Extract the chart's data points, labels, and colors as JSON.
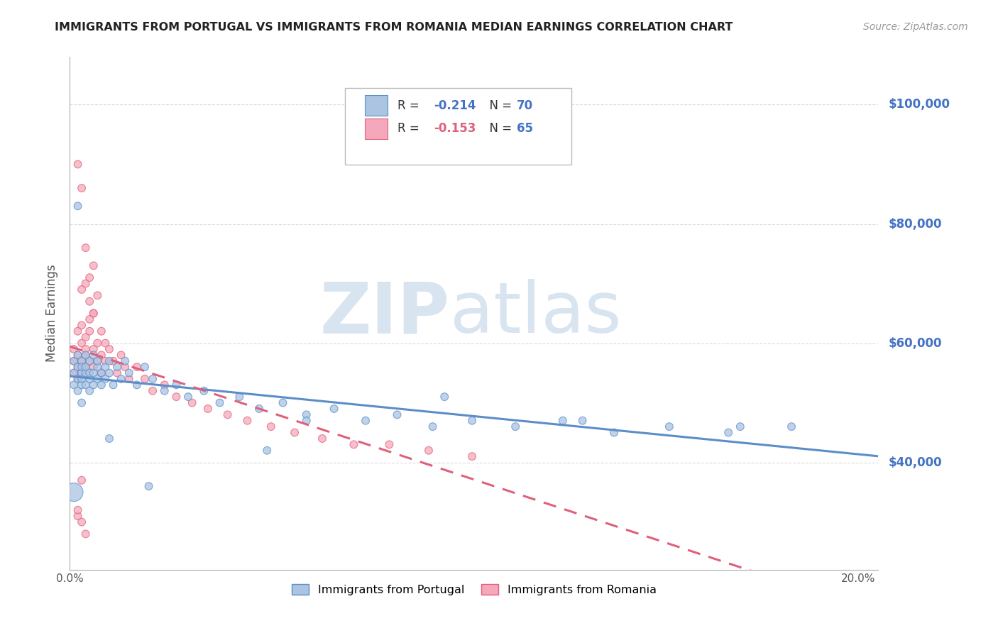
{
  "title": "IMMIGRANTS FROM PORTUGAL VS IMMIGRANTS FROM ROMANIA MEDIAN EARNINGS CORRELATION CHART",
  "source": "Source: ZipAtlas.com",
  "ylabel": "Median Earnings",
  "watermark_zip": "ZIP",
  "watermark_atlas": "atlas",
  "xlim": [
    0.0,
    0.205
  ],
  "ylim": [
    22000,
    108000
  ],
  "yticks": [
    40000,
    60000,
    80000,
    100000
  ],
  "ytick_labels": [
    "$40,000",
    "$60,000",
    "$80,000",
    "$100,000"
  ],
  "xticks": [
    0.0,
    0.04,
    0.08,
    0.12,
    0.16,
    0.2
  ],
  "xtick_labels": [
    "0.0%",
    "",
    "",
    "",
    "",
    "20.0%"
  ],
  "color_portugal": "#aac4e2",
  "color_romania": "#f5a8bc",
  "line_color_portugal": "#5b8ec9",
  "line_color_romania": "#e0607a",
  "R_portugal": -0.214,
  "N_portugal": 70,
  "R_romania": -0.153,
  "N_romania": 65,
  "legend_label_portugal": "Immigrants from Portugal",
  "legend_label_romania": "Immigrants from Romania",
  "portugal_x": [
    0.001,
    0.001,
    0.001,
    0.002,
    0.002,
    0.002,
    0.002,
    0.003,
    0.003,
    0.003,
    0.003,
    0.003,
    0.004,
    0.004,
    0.004,
    0.004,
    0.005,
    0.005,
    0.005,
    0.005,
    0.006,
    0.006,
    0.006,
    0.007,
    0.007,
    0.007,
    0.008,
    0.008,
    0.009,
    0.009,
    0.01,
    0.01,
    0.011,
    0.012,
    0.013,
    0.014,
    0.015,
    0.017,
    0.019,
    0.021,
    0.024,
    0.027,
    0.03,
    0.034,
    0.038,
    0.043,
    0.048,
    0.054,
    0.06,
    0.067,
    0.075,
    0.083,
    0.092,
    0.102,
    0.113,
    0.125,
    0.138,
    0.152,
    0.167,
    0.183,
    0.001,
    0.002,
    0.003,
    0.01,
    0.06,
    0.095,
    0.13,
    0.17,
    0.05,
    0.02
  ],
  "portugal_y": [
    55000,
    53000,
    57000,
    56000,
    54000,
    58000,
    52000,
    55000,
    57000,
    53000,
    56000,
    54000,
    58000,
    55000,
    53000,
    56000,
    57000,
    54000,
    55000,
    52000,
    58000,
    55000,
    53000,
    56000,
    54000,
    57000,
    55000,
    53000,
    56000,
    54000,
    57000,
    55000,
    53000,
    56000,
    54000,
    57000,
    55000,
    53000,
    56000,
    54000,
    52000,
    53000,
    51000,
    52000,
    50000,
    51000,
    49000,
    50000,
    48000,
    49000,
    47000,
    48000,
    46000,
    47000,
    46000,
    47000,
    45000,
    46000,
    45000,
    46000,
    35000,
    83000,
    50000,
    44000,
    47000,
    51000,
    47000,
    46000,
    42000,
    36000
  ],
  "portugal_size": [
    60,
    60,
    60,
    60,
    60,
    60,
    60,
    60,
    60,
    60,
    60,
    60,
    60,
    60,
    60,
    60,
    60,
    60,
    60,
    60,
    60,
    60,
    60,
    60,
    60,
    60,
    60,
    60,
    60,
    60,
    60,
    60,
    60,
    60,
    60,
    60,
    60,
    60,
    60,
    60,
    60,
    60,
    60,
    60,
    60,
    60,
    60,
    60,
    60,
    60,
    60,
    60,
    60,
    60,
    60,
    60,
    60,
    60,
    60,
    60,
    350,
    60,
    60,
    60,
    60,
    60,
    60,
    60,
    60,
    60
  ],
  "romania_x": [
    0.001,
    0.001,
    0.001,
    0.002,
    0.002,
    0.002,
    0.002,
    0.003,
    0.003,
    0.003,
    0.003,
    0.004,
    0.004,
    0.004,
    0.004,
    0.005,
    0.005,
    0.005,
    0.006,
    0.006,
    0.006,
    0.007,
    0.007,
    0.008,
    0.008,
    0.008,
    0.009,
    0.009,
    0.01,
    0.011,
    0.012,
    0.013,
    0.014,
    0.015,
    0.017,
    0.019,
    0.021,
    0.024,
    0.027,
    0.031,
    0.035,
    0.04,
    0.045,
    0.051,
    0.057,
    0.064,
    0.072,
    0.081,
    0.091,
    0.102,
    0.002,
    0.003,
    0.004,
    0.006,
    0.003,
    0.004,
    0.005,
    0.007,
    0.005,
    0.006,
    0.003,
    0.002,
    0.003,
    0.004,
    0.002
  ],
  "romania_y": [
    57000,
    55000,
    59000,
    56000,
    62000,
    58000,
    54000,
    60000,
    57000,
    55000,
    63000,
    58000,
    61000,
    56000,
    59000,
    64000,
    57000,
    62000,
    59000,
    56000,
    65000,
    60000,
    57000,
    62000,
    58000,
    55000,
    60000,
    57000,
    59000,
    57000,
    55000,
    58000,
    56000,
    54000,
    56000,
    54000,
    52000,
    53000,
    51000,
    50000,
    49000,
    48000,
    47000,
    46000,
    45000,
    44000,
    43000,
    43000,
    42000,
    41000,
    90000,
    86000,
    76000,
    73000,
    69000,
    70000,
    71000,
    68000,
    67000,
    65000,
    37000,
    31000,
    30000,
    28000,
    32000
  ],
  "romania_size": [
    60,
    60,
    60,
    60,
    60,
    60,
    60,
    60,
    60,
    60,
    60,
    60,
    60,
    60,
    60,
    60,
    60,
    60,
    60,
    60,
    60,
    60,
    60,
    60,
    60,
    60,
    60,
    60,
    60,
    60,
    60,
    60,
    60,
    60,
    60,
    60,
    60,
    60,
    60,
    60,
    60,
    60,
    60,
    60,
    60,
    60,
    60,
    60,
    60,
    60,
    60,
    60,
    60,
    60,
    60,
    60,
    60,
    60,
    60,
    60,
    60,
    60,
    60,
    60,
    60
  ],
  "background_color": "#ffffff",
  "grid_color": "#cccccc",
  "axis_color": "#aaaaaa",
  "title_color": "#222222",
  "ylabel_color": "#555555",
  "right_label_color": "#4472c4",
  "legend_R_color_portugal": "#4472c4",
  "legend_R_color_romania": "#e0607a",
  "legend_N_color": "#4472c4"
}
